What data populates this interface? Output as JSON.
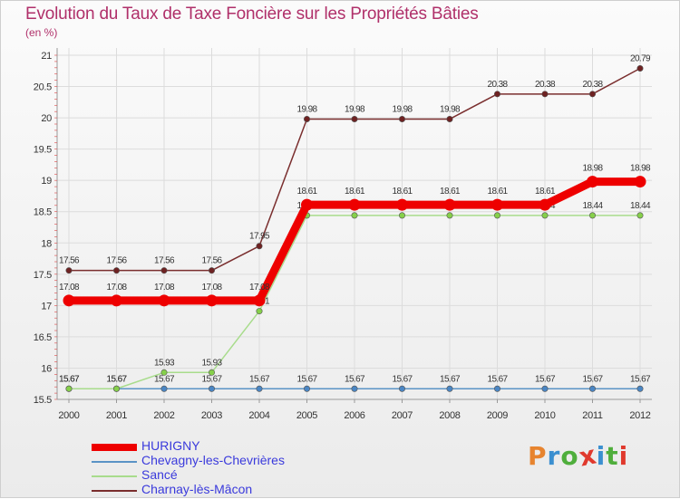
{
  "title": "Evolution du Taux de Taxe Foncière sur les Propriétés Bâties",
  "unit": "(en %)",
  "logo": {
    "letters": [
      "P",
      "r",
      "o",
      "x",
      "i",
      "t",
      "i"
    ],
    "colors": [
      "#e7842f",
      "#3b8fd0",
      "#4fae3c",
      "#e0392d",
      "#3b8fd0",
      "#4fae3c",
      "#e0392d"
    ]
  },
  "chart_data": {
    "type": "line",
    "title": "Evolution du Taux de Taxe Foncière sur les Propriétés Bâties",
    "ylabel": "(en %)",
    "xlabel": "",
    "ylim": [
      15.5,
      21
    ],
    "y_ticks": [
      "15.5",
      "16",
      "16.5",
      "17",
      "17.5",
      "18",
      "18.5",
      "19",
      "19.5",
      "20",
      "20.5",
      "21"
    ],
    "categories": [
      "2000",
      "2001",
      "2002",
      "2003",
      "2004",
      "2005",
      "2006",
      "2007",
      "2008",
      "2009",
      "2010",
      "2011",
      "2012"
    ],
    "series": [
      {
        "name": "Chevagny-les-Chevrières",
        "color": "#5a93c6",
        "marker": "#4a86c4",
        "values": [
          15.67,
          15.67,
          15.67,
          15.67,
          15.67,
          15.67,
          15.67,
          15.67,
          15.67,
          15.67,
          15.67,
          15.67,
          15.67
        ],
        "labels": [
          "15.67",
          "15.67",
          "15.67",
          "15.67",
          "15.67",
          "15.67",
          "15.67",
          "15.67",
          "15.67",
          "15.67",
          "15.67",
          "15.67",
          "15.67"
        ]
      },
      {
        "name": "Sancé",
        "color": "#a8dc8c",
        "marker": "#86d04a",
        "values": [
          15.67,
          15.67,
          15.93,
          15.93,
          16.91,
          18.44,
          18.44,
          18.44,
          18.44,
          18.44,
          18.44,
          18.44,
          18.44
        ],
        "labels": [
          "15.67",
          "15.67",
          "15.93",
          "15.93",
          "16.91",
          "18.44",
          "18.44",
          "18.44",
          "18.44",
          "18.44",
          "18.44",
          "18.44",
          "18.44"
        ]
      },
      {
        "name": "Charnay-lès-Mâcon",
        "color": "#7a2e2e",
        "marker": "#6e2222",
        "values": [
          17.56,
          17.56,
          17.56,
          17.56,
          17.95,
          19.98,
          19.98,
          19.98,
          19.98,
          20.38,
          20.38,
          20.38,
          20.79
        ],
        "labels": [
          "17.56",
          "17.56",
          "17.56",
          "17.56",
          "17.95",
          "19.98",
          "19.98",
          "19.98",
          "19.98",
          "20.38",
          "20.38",
          "20.38",
          "20.79"
        ]
      },
      {
        "name": "HURIGNY",
        "color": "#ee0000",
        "marker": "#ee0000",
        "values": [
          17.08,
          17.08,
          17.08,
          17.08,
          17.08,
          18.61,
          18.61,
          18.61,
          18.61,
          18.61,
          18.61,
          18.98,
          18.98
        ],
        "labels": [
          "17.08",
          "17.08",
          "17.08",
          "17.08",
          "17.08",
          "18.61",
          "18.61",
          "18.61",
          "18.61",
          "18.61",
          "18.61",
          "18.98",
          "18.98"
        ]
      }
    ],
    "legend": [
      {
        "name": "HURIGNY",
        "color": "#ee0000",
        "text_color": "#3a3adc"
      },
      {
        "name": "Chevagny-les-Chevrières",
        "color": "#5a93c6",
        "text_color": "#3a3adc"
      },
      {
        "name": "Sancé",
        "color": "#a8dc8c",
        "text_color": "#3a3adc"
      },
      {
        "name": "Charnay-lès-Mâcon",
        "color": "#7a2e2e",
        "text_color": "#3a3adc"
      }
    ]
  }
}
